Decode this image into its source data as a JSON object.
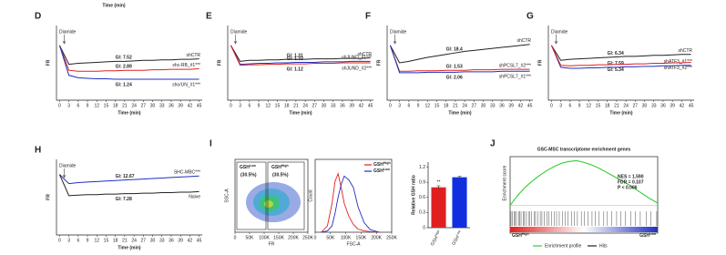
{
  "top_axis_label": "Time (min)",
  "time_axis": {
    "x_label": "Time (min)",
    "y_label": "FR",
    "treatment": "Diamide",
    "xlim": [
      -1,
      46
    ],
    "ylim": [
      0,
      1.5
    ],
    "xticks": [
      0,
      3,
      6,
      9,
      12,
      15,
      18,
      21,
      24,
      27,
      30,
      33,
      36,
      39,
      42,
      45
    ]
  },
  "line_panels": [
    {
      "label": "D",
      "series": [
        {
          "name": "shCTR",
          "gi": "GI: 7.52",
          "color": "#222222",
          "values": [
            1.1,
            0.72,
            0.74,
            0.75,
            0.76,
            0.77,
            0.78,
            0.78,
            0.79,
            0.8,
            0.8,
            0.81,
            0.81,
            0.82,
            0.82,
            0.83
          ]
        },
        {
          "name": "shc-RB_#1***",
          "gi": "GI: 2.89",
          "color": "#e02020",
          "values": [
            1.1,
            0.6,
            0.58,
            0.58,
            0.58,
            0.59,
            0.59,
            0.6,
            0.6,
            0.6,
            0.61,
            0.61,
            0.62,
            0.62,
            0.62,
            0.63
          ]
        },
        {
          "name": "sho/UN_#1***",
          "gi": "GI: 1.24",
          "color": "#2030c0",
          "values": [
            1.1,
            0.5,
            0.45,
            0.44,
            0.43,
            0.43,
            0.42,
            0.42,
            0.42,
            0.42,
            0.42,
            0.42,
            0.42,
            0.42,
            0.42,
            0.42
          ]
        }
      ]
    },
    {
      "label": "E",
      "series": [
        {
          "name": "shCTR",
          "gi": "GI: 1.31",
          "color": "#222222",
          "values": [
            1.1,
            0.78,
            0.8,
            0.8,
            0.81,
            0.81,
            0.82,
            0.82,
            0.82,
            0.83,
            0.83,
            0.83,
            0.84,
            0.84,
            0.84,
            0.85
          ]
        },
        {
          "name": "shJUND_#1***",
          "gi": "GI: 1.32",
          "color": "#2030c0",
          "values": [
            1.1,
            0.72,
            0.73,
            0.74,
            0.74,
            0.75,
            0.75,
            0.76,
            0.76,
            0.76,
            0.77,
            0.77,
            0.77,
            0.78,
            0.78,
            0.78
          ]
        },
        {
          "name": "shJUND_#2***",
          "gi": "GI: 1.12",
          "color": "#e02020",
          "values": [
            1.1,
            0.7,
            0.71,
            0.71,
            0.72,
            0.72,
            0.73,
            0.73,
            0.73,
            0.74,
            0.74,
            0.74,
            0.75,
            0.75,
            0.75,
            0.75
          ]
        }
      ]
    },
    {
      "label": "F",
      "series": [
        {
          "name": "shCTR",
          "gi": "GI: 18.4",
          "color": "#222222",
          "values": [
            1.1,
            0.75,
            0.78,
            0.82,
            0.86,
            0.89,
            0.92,
            0.95,
            0.98,
            1.0,
            1.02,
            1.04,
            1.06,
            1.08,
            1.1,
            1.12
          ]
        },
        {
          "name": "shPCSL7_#2***",
          "gi": "GI: 1.53",
          "color": "#e02020",
          "values": [
            1.1,
            0.58,
            0.58,
            0.59,
            0.59,
            0.59,
            0.6,
            0.6,
            0.6,
            0.61,
            0.61,
            0.61,
            0.62,
            0.62,
            0.62,
            0.62
          ]
        },
        {
          "name": "shPCSL7_#1***",
          "gi": "GI: 2.06",
          "color": "#2030c0",
          "values": [
            1.1,
            0.55,
            0.55,
            0.55,
            0.56,
            0.56,
            0.56,
            0.56,
            0.57,
            0.57,
            0.57,
            0.57,
            0.58,
            0.58,
            0.58,
            0.58
          ]
        }
      ]
    },
    {
      "label": "G",
      "series": [
        {
          "name": "shCTR",
          "gi": "GI: 6.34",
          "color": "#222222",
          "values": [
            1.1,
            0.8,
            0.82,
            0.83,
            0.84,
            0.85,
            0.86,
            0.87,
            0.88,
            0.88,
            0.89,
            0.9,
            0.9,
            0.91,
            0.92,
            0.92
          ]
        },
        {
          "name": "shATF3_#1***",
          "gi": "GI: 7.59",
          "color": "#2030c0",
          "values": [
            1.1,
            0.66,
            0.64,
            0.64,
            0.65,
            0.65,
            0.66,
            0.66,
            0.67,
            0.67,
            0.68,
            0.68,
            0.69,
            0.69,
            0.7,
            0.7
          ]
        },
        {
          "name": "shATF3_#2***",
          "gi": "GI: 5.34",
          "color": "#e02020",
          "values": [
            1.1,
            0.7,
            0.69,
            0.7,
            0.7,
            0.71,
            0.71,
            0.72,
            0.72,
            0.73,
            0.73,
            0.74,
            0.74,
            0.75,
            0.75,
            0.76
          ]
        }
      ]
    },
    {
      "label": "H",
      "series": [
        {
          "name": "SHC-MBC***",
          "gi": "GI: 12.67",
          "color": "#2030c0",
          "values": [
            1.2,
            1.02,
            1.04,
            1.05,
            1.06,
            1.07,
            1.08,
            1.09,
            1.1,
            1.11,
            1.12,
            1.13,
            1.14,
            1.15,
            1.16,
            1.17
          ]
        },
        {
          "name": "Naive",
          "gi": "GI: 7.28",
          "color": "#222222",
          "values": [
            1.2,
            0.78,
            0.79,
            0.8,
            0.8,
            0.81,
            0.81,
            0.82,
            0.82,
            0.83,
            0.83,
            0.84,
            0.84,
            0.85,
            0.85,
            0.86
          ]
        }
      ]
    }
  ],
  "flow": {
    "label": "I",
    "x_label": "FR",
    "y_label": "SSC-A",
    "gates": [
      {
        "base": "GSH",
        "sup": "Low",
        "pct": "(30.5%)",
        "color": "#2030c0"
      },
      {
        "base": "GSH",
        "sup": "High",
        "pct": "(30.5%)",
        "color": "#e02020"
      }
    ],
    "xlim": [
      0,
      250000
    ],
    "xticks": [
      0,
      {
        "value": 50000,
        "label": "50K"
      },
      {
        "value": 100000,
        "label": "100K"
      },
      {
        "value": 150000,
        "label": "150K"
      },
      {
        "value": 200000,
        "label": "200K"
      },
      {
        "value": 250000,
        "label": "250K"
      }
    ]
  },
  "histogram": {
    "type": "line",
    "x_label": "FSC-A",
    "y_label": "Count",
    "xlim": [
      0,
      250000
    ],
    "ylim": [
      0,
      100
    ],
    "xticks": [
      0,
      {
        "value": 50000,
        "label": "50K"
      },
      {
        "value": 100000,
        "label": "100K"
      },
      {
        "value": 150000,
        "label": "150K"
      },
      {
        "value": 200000,
        "label": "200K"
      },
      {
        "value": 250000,
        "label": "250K"
      }
    ],
    "x": [
      20000,
      40000,
      55000,
      65000,
      75000,
      85000,
      95000,
      110000,
      125000,
      140000,
      160000,
      180000,
      210000
    ],
    "series": [
      {
        "base": "GSH",
        "sup": "High",
        "color": "#e02020",
        "values": [
          0,
          10,
          45,
          80,
          92,
          70,
          45,
          25,
          12,
          5,
          2,
          1,
          0
        ]
      },
      {
        "base": "GSH",
        "sup": "Low",
        "color": "#2030c0",
        "values": [
          0,
          2,
          10,
          30,
          55,
          75,
          88,
          82,
          70,
          40,
          15,
          4,
          0
        ]
      }
    ]
  },
  "bar": {
    "type": "bar",
    "y_label": "Relative GSH ratio",
    "ylim": [
      0,
      1.3
    ],
    "yticks": [
      0,
      0.3,
      0.6,
      0.9,
      1.2
    ],
    "categories": [
      {
        "base": "GSH",
        "sup": "High"
      },
      {
        "base": "GSH",
        "sup": "Low"
      }
    ],
    "values": [
      0.8,
      1.0
    ],
    "errors": [
      0.03,
      0.02
    ],
    "colors": [
      "#e02020",
      "#1030e0"
    ],
    "annotations": [
      "**",
      null
    ]
  },
  "gsea": {
    "label": "J",
    "title": "GSC-MSC transcriptome enrichment genes",
    "y_label": "Enrichment score",
    "ylim": [
      -0.05,
      0.6
    ],
    "stats": [
      "NES = 1.590",
      "FDR = 0.107",
      "P < 0.006"
    ],
    "values": [
      0,
      0.12,
      0.22,
      0.3,
      0.37,
      0.43,
      0.48,
      0.52,
      0.54,
      0.55,
      0.53,
      0.5,
      0.46,
      0.41,
      0.36,
      0.31,
      0.26,
      0.2,
      0.14,
      0.08,
      0.03
    ],
    "left_end": {
      "base": "GSH",
      "sup": "High"
    },
    "right_end": {
      "base": "GSH",
      "sup": "Low"
    },
    "legend": [
      {
        "name": "Enrichment profile",
        "color": "#33cc33"
      },
      {
        "name": "Hits",
        "color": "#222222"
      }
    ]
  }
}
